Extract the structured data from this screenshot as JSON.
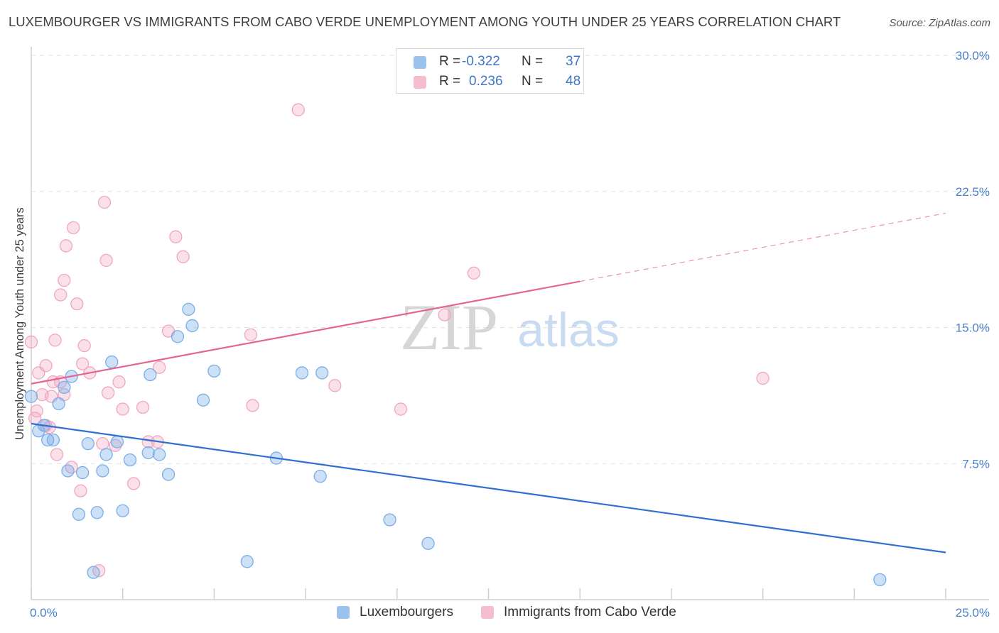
{
  "chart_data": {
    "type": "scatter",
    "title": "LUXEMBOURGER VS IMMIGRANTS FROM CABO VERDE UNEMPLOYMENT AMONG YOUTH UNDER 25 YEARS CORRELATION CHART",
    "source": "Source: ZipAtlas.com",
    "ylabel": "Unemployment Among Youth under 25 years",
    "xlim": [
      0,
      25
    ],
    "ylim": [
      0,
      30
    ],
    "x_tick_labels": [
      "0.0%",
      "25.0%"
    ],
    "y_ticks": [
      {
        "value": 7.5,
        "label": "7.5%"
      },
      {
        "value": 15.0,
        "label": "15.0%"
      },
      {
        "value": 22.5,
        "label": "22.5%"
      },
      {
        "value": 30.0,
        "label": "30.0%"
      }
    ],
    "watermark": {
      "zip": "ZIP",
      "atlas": "atlas"
    },
    "series": [
      {
        "name": "Luxembourgers",
        "color": "#7aaee8",
        "line_color": "#2f6fd1",
        "r_label": "R =",
        "r_value": "-0.322",
        "n_label": "N =",
        "n_value": "37",
        "trend": {
          "x0": 0,
          "y0": 9.7,
          "x1": 25,
          "y1": 2.6,
          "solid_until": 25
        },
        "points": [
          [
            0.0,
            11.2
          ],
          [
            0.2,
            9.3
          ],
          [
            0.35,
            9.6
          ],
          [
            0.45,
            8.8
          ],
          [
            0.6,
            8.8
          ],
          [
            0.75,
            10.8
          ],
          [
            0.9,
            11.7
          ],
          [
            1.0,
            7.1
          ],
          [
            1.1,
            12.3
          ],
          [
            1.3,
            4.7
          ],
          [
            1.4,
            7.0
          ],
          [
            1.55,
            8.6
          ],
          [
            1.7,
            1.5
          ],
          [
            1.8,
            4.8
          ],
          [
            1.95,
            7.1
          ],
          [
            2.05,
            8.0
          ],
          [
            2.2,
            13.1
          ],
          [
            2.35,
            8.7
          ],
          [
            2.5,
            4.9
          ],
          [
            2.7,
            7.7
          ],
          [
            3.2,
            8.1
          ],
          [
            3.25,
            12.4
          ],
          [
            3.5,
            8.0
          ],
          [
            3.75,
            6.9
          ],
          [
            4.0,
            14.5
          ],
          [
            4.3,
            16.0
          ],
          [
            4.4,
            15.1
          ],
          [
            4.7,
            11.0
          ],
          [
            5.0,
            12.6
          ],
          [
            5.9,
            2.1
          ],
          [
            6.7,
            7.8
          ],
          [
            7.4,
            12.5
          ],
          [
            7.9,
            6.8
          ],
          [
            7.95,
            12.5
          ],
          [
            9.8,
            4.4
          ],
          [
            10.85,
            3.1
          ],
          [
            23.2,
            1.1
          ]
        ]
      },
      {
        "name": "Immigrants from Cabo Verde",
        "color": "#f2a7bf",
        "line_color": "#e26693",
        "r_label": "R =",
        "r_value": "0.236",
        "n_label": "N =",
        "n_value": "48",
        "trend": {
          "x0": 0,
          "y0": 11.9,
          "x1": 25,
          "y1": 21.3,
          "solid_until": 15.0
        },
        "points": [
          [
            0.0,
            14.2
          ],
          [
            0.1,
            10.0
          ],
          [
            0.15,
            10.4
          ],
          [
            0.2,
            12.5
          ],
          [
            0.3,
            11.3
          ],
          [
            0.4,
            9.6
          ],
          [
            0.4,
            12.9
          ],
          [
            0.5,
            9.5
          ],
          [
            0.55,
            11.2
          ],
          [
            0.6,
            12.0
          ],
          [
            0.65,
            14.3
          ],
          [
            0.7,
            8.0
          ],
          [
            0.8,
            12.0
          ],
          [
            0.8,
            16.8
          ],
          [
            0.9,
            11.3
          ],
          [
            0.9,
            17.6
          ],
          [
            0.95,
            19.5
          ],
          [
            1.1,
            7.3
          ],
          [
            1.15,
            20.5
          ],
          [
            1.25,
            16.3
          ],
          [
            1.35,
            6.0
          ],
          [
            1.4,
            13.0
          ],
          [
            1.45,
            14.0
          ],
          [
            1.6,
            12.5
          ],
          [
            1.85,
            1.6
          ],
          [
            1.95,
            8.6
          ],
          [
            2.0,
            21.9
          ],
          [
            2.05,
            18.7
          ],
          [
            2.1,
            11.4
          ],
          [
            2.3,
            8.5
          ],
          [
            2.4,
            12.0
          ],
          [
            2.5,
            10.5
          ],
          [
            2.8,
            6.4
          ],
          [
            3.05,
            10.6
          ],
          [
            3.2,
            8.7
          ],
          [
            3.45,
            8.7
          ],
          [
            3.5,
            12.8
          ],
          [
            3.75,
            14.8
          ],
          [
            3.95,
            20.0
          ],
          [
            4.15,
            18.9
          ],
          [
            6.0,
            14.6
          ],
          [
            6.05,
            10.7
          ],
          [
            7.3,
            27.0
          ],
          [
            8.3,
            11.8
          ],
          [
            10.1,
            10.5
          ],
          [
            11.3,
            15.7
          ],
          [
            12.1,
            18.0
          ],
          [
            20.0,
            12.2
          ]
        ]
      }
    ]
  }
}
